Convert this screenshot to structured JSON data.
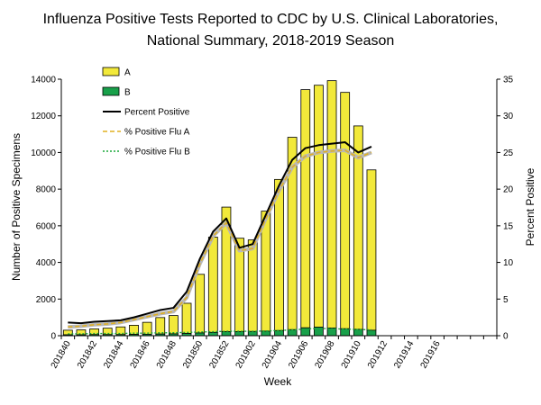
{
  "chart_data": {
    "type": "bar",
    "title": "Influenza Positive Tests Reported to CDC by U.S. Clinical Laboratories,",
    "subtitle": "National Summary, 2018-2019 Season",
    "xlabel": "Week",
    "ylabel": "Number of Positive Specimens",
    "y2label": "Percent Positive",
    "ylim": [
      0,
      14000
    ],
    "y2lim": [
      0,
      35
    ],
    "yticks": [
      "0",
      "2000",
      "4000",
      "6000",
      "8000",
      "10000",
      "12000",
      "14000"
    ],
    "y2ticks": [
      "0",
      "5",
      "10",
      "15",
      "20",
      "25",
      "30",
      "35"
    ],
    "x_tick_labels": [
      "201840",
      "201842",
      "201844",
      "201846",
      "201848",
      "201850",
      "201852",
      "201902",
      "201904",
      "201906",
      "201908",
      "201910",
      "201912",
      "201914",
      "201916"
    ],
    "num_weeks": 33,
    "legend_position": "top-left",
    "colors": {
      "flu_a": "#f2e93a",
      "flu_b": "#18a04a",
      "percent_positive": "#000000",
      "pct_flu_a": "#e0b020",
      "pct_flu_b": "#1aa83a",
      "pct_flu_a_shadow": "#b8b8b8"
    },
    "series": [
      {
        "name": "A",
        "type": "bar",
        "values": [
          250,
          270,
          310,
          350,
          420,
          500,
          650,
          900,
          1000,
          1650,
          3200,
          5200,
          6800,
          5100,
          5000,
          6550,
          8250,
          10500,
          13000,
          13200,
          13500,
          12900,
          11100,
          8750
        ]
      },
      {
        "name": "B",
        "type": "bar",
        "values": [
          50,
          50,
          60,
          60,
          60,
          70,
          80,
          90,
          100,
          120,
          150,
          180,
          220,
          220,
          230,
          250,
          280,
          330,
          430,
          470,
          420,
          380,
          350,
          300
        ]
      },
      {
        "name": "Percent Positive",
        "type": "line",
        "values": [
          1.8,
          1.7,
          1.9,
          2.0,
          2.1,
          2.5,
          3.0,
          3.5,
          3.8,
          6.0,
          10.5,
          14.2,
          16.0,
          12.0,
          12.5,
          16.5,
          20.5,
          24.0,
          25.6,
          26.0,
          26.2,
          26.4,
          25.0,
          25.8
        ]
      },
      {
        "name": "% Positive Flu A",
        "type": "line",
        "values": [
          1.2,
          1.3,
          1.5,
          1.6,
          1.8,
          2.2,
          2.6,
          3.0,
          3.3,
          5.2,
          9.8,
          13.6,
          15.4,
          11.6,
          11.9,
          16.0,
          19.8,
          23.0,
          24.5,
          25.0,
          25.2,
          25.3,
          24.3,
          25.0
        ]
      },
      {
        "name": "% Positive Flu B",
        "type": "line",
        "values": [
          0.25,
          0.25,
          0.3,
          0.3,
          0.3,
          0.35,
          0.35,
          0.4,
          0.4,
          0.45,
          0.5,
          0.55,
          0.6,
          0.6,
          0.6,
          0.65,
          0.7,
          0.8,
          0.9,
          1.0,
          0.95,
          0.9,
          0.85,
          0.8
        ]
      }
    ]
  }
}
